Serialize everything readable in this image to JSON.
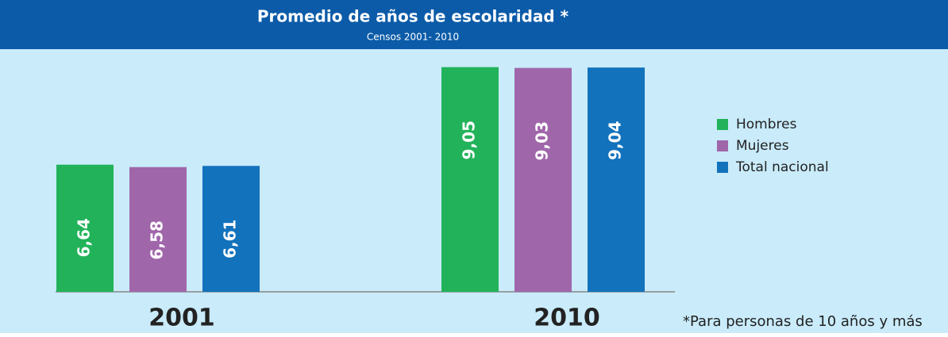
{
  "chart_data": {
    "type": "bar",
    "title": "Promedio de años de  escolaridad *",
    "subtitle": "Censos 2001- 2010",
    "categories": [
      "2001",
      "2010"
    ],
    "series": [
      {
        "name": "Hombres",
        "color": "#22b35a",
        "values": [
          6.64,
          9.05
        ],
        "value_labels": [
          "6,64",
          "9,05"
        ]
      },
      {
        "name": "Mujeres",
        "color": "#a066aa",
        "values": [
          6.58,
          9.03
        ],
        "value_labels": [
          "6,58",
          "9,03"
        ]
      },
      {
        "name": "Total nacional",
        "color": "#1272bc",
        "values": [
          6.61,
          9.04
        ],
        "value_labels": [
          "6,61",
          "9,04"
        ]
      }
    ],
    "ylim": [
      3.5,
      9.2
    ],
    "legend": "right",
    "footnote": "*Para personas de 10 años y más"
  }
}
